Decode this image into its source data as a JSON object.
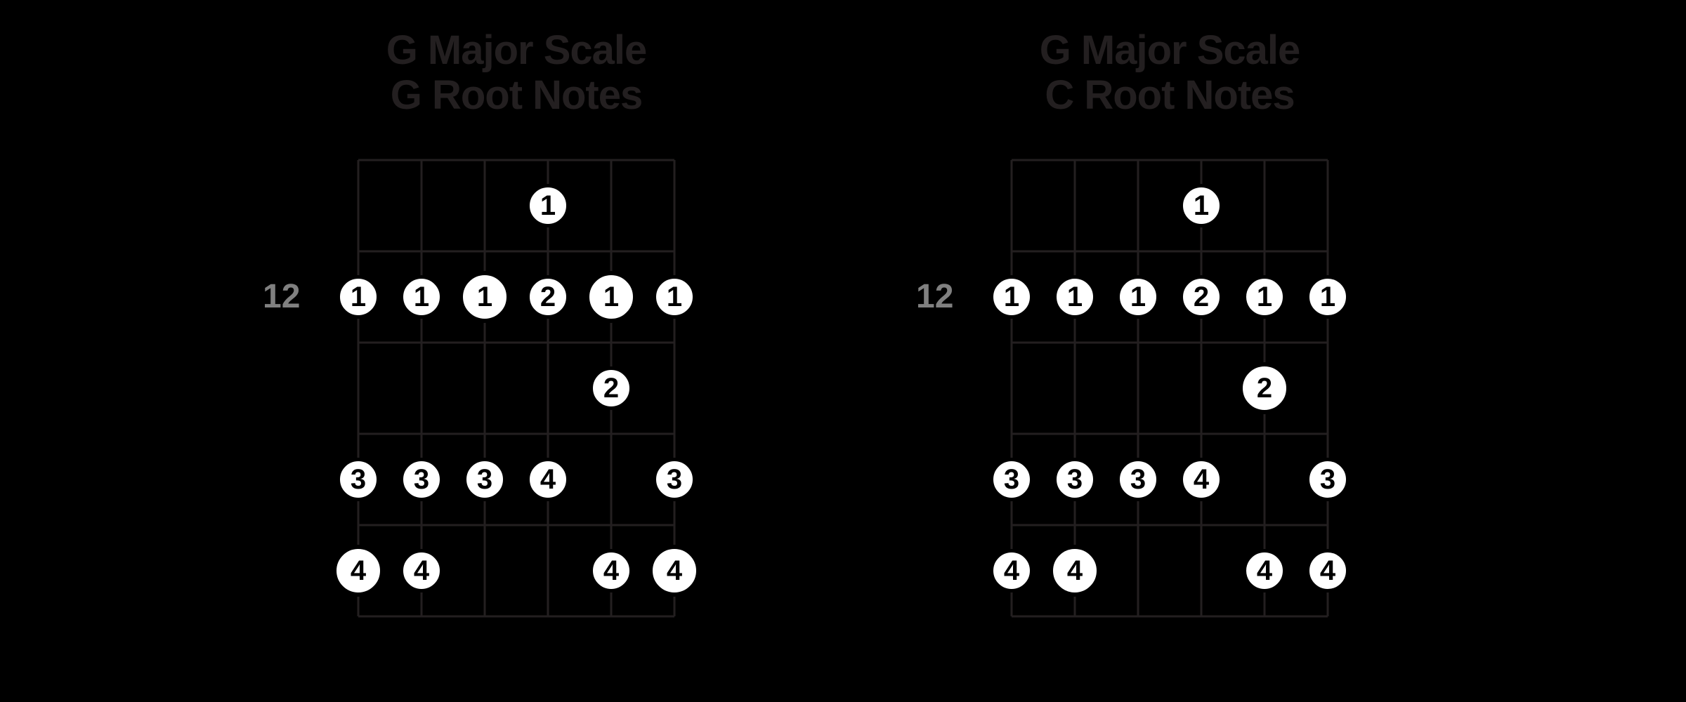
{
  "layout": {
    "background_color": "#000000",
    "strings": 6,
    "frets": 5,
    "string_spacing": 90,
    "fret_spacing": 130,
    "board_width": 450,
    "board_height": 650,
    "line_color": "#231f20",
    "line_width": 3,
    "dot_diameter": 62,
    "root_dot_diameter": 74,
    "dot_fill": "#ffffff",
    "dot_stroke": "#000000",
    "dot_stroke_width": 5,
    "dot_text_color": "#000000",
    "dot_font_size": 40,
    "dot_font_weight": 900,
    "title_color": "#231f20",
    "title_font_size": 58,
    "title_font_weight": 700,
    "fret_label_color": "#808080",
    "fret_label_font_size": 48,
    "fret_label_font_weight": 700
  },
  "diagrams": [
    {
      "title_line1": "G Major Scale",
      "title_line2": "G Root Notes",
      "fret_label": "12",
      "fret_label_fret": 2,
      "notes": [
        {
          "string": 3,
          "fret": 1,
          "finger": "1",
          "root": false
        },
        {
          "string": 0,
          "fret": 2,
          "finger": "1",
          "root": false
        },
        {
          "string": 1,
          "fret": 2,
          "finger": "1",
          "root": false
        },
        {
          "string": 2,
          "fret": 2,
          "finger": "1",
          "root": true
        },
        {
          "string": 3,
          "fret": 2,
          "finger": "2",
          "root": false
        },
        {
          "string": 4,
          "fret": 2,
          "finger": "1",
          "root": true
        },
        {
          "string": 5,
          "fret": 2,
          "finger": "1",
          "root": false
        },
        {
          "string": 4,
          "fret": 3,
          "finger": "2",
          "root": false
        },
        {
          "string": 0,
          "fret": 4,
          "finger": "3",
          "root": false
        },
        {
          "string": 1,
          "fret": 4,
          "finger": "3",
          "root": false
        },
        {
          "string": 2,
          "fret": 4,
          "finger": "3",
          "root": false
        },
        {
          "string": 3,
          "fret": 4,
          "finger": "4",
          "root": false
        },
        {
          "string": 5,
          "fret": 4,
          "finger": "3",
          "root": false
        },
        {
          "string": 0,
          "fret": 5,
          "finger": "4",
          "root": true
        },
        {
          "string": 1,
          "fret": 5,
          "finger": "4",
          "root": false
        },
        {
          "string": 4,
          "fret": 5,
          "finger": "4",
          "root": false
        },
        {
          "string": 5,
          "fret": 5,
          "finger": "4",
          "root": true
        }
      ]
    },
    {
      "title_line1": "G Major Scale",
      "title_line2": "C Root Notes",
      "fret_label": "12",
      "fret_label_fret": 2,
      "notes": [
        {
          "string": 3,
          "fret": 1,
          "finger": "1",
          "root": false
        },
        {
          "string": 0,
          "fret": 2,
          "finger": "1",
          "root": false
        },
        {
          "string": 1,
          "fret": 2,
          "finger": "1",
          "root": false
        },
        {
          "string": 2,
          "fret": 2,
          "finger": "1",
          "root": false
        },
        {
          "string": 3,
          "fret": 2,
          "finger": "2",
          "root": false
        },
        {
          "string": 4,
          "fret": 2,
          "finger": "1",
          "root": false
        },
        {
          "string": 5,
          "fret": 2,
          "finger": "1",
          "root": false
        },
        {
          "string": 4,
          "fret": 3,
          "finger": "2",
          "root": true
        },
        {
          "string": 0,
          "fret": 4,
          "finger": "3",
          "root": false
        },
        {
          "string": 1,
          "fret": 4,
          "finger": "3",
          "root": false
        },
        {
          "string": 2,
          "fret": 4,
          "finger": "3",
          "root": false
        },
        {
          "string": 3,
          "fret": 4,
          "finger": "4",
          "root": false
        },
        {
          "string": 5,
          "fret": 4,
          "finger": "3",
          "root": false
        },
        {
          "string": 0,
          "fret": 5,
          "finger": "4",
          "root": false
        },
        {
          "string": 1,
          "fret": 5,
          "finger": "4",
          "root": true
        },
        {
          "string": 4,
          "fret": 5,
          "finger": "4",
          "root": false
        },
        {
          "string": 5,
          "fret": 5,
          "finger": "4",
          "root": false
        }
      ]
    }
  ]
}
